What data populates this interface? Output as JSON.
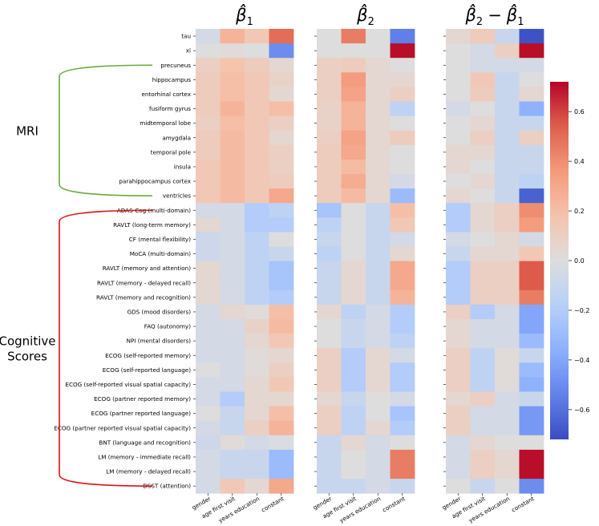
{
  "chart_data": {
    "type": "heatmap",
    "panels": [
      {
        "title_base": "β",
        "title_sub": "1",
        "title_hat": true
      },
      {
        "title_base": "β",
        "title_sub": "2",
        "title_hat": true
      },
      {
        "title_base": "β",
        "title_sub": "2",
        "title_minus": "−",
        "title_base2": "β",
        "title_sub2": "1",
        "title_hat": true
      }
    ],
    "columns": [
      "gender",
      "age first visit",
      "years education",
      "constant"
    ],
    "rows": [
      "tau",
      "xi",
      "precuneus",
      "hippocampus",
      "entorhinal cortex",
      "fusiform gyrus",
      "midtemporal lobe",
      "amygdala",
      "temporal pole",
      "insula",
      "parahippocampus cortex",
      "ventricles",
      "ADAS-Cog (multi-domain)",
      "RAVLT (long-term memory)",
      "CF (mental flexibility)",
      "MoCA (multi-domain)",
      "RAVLT (memory and attention)",
      "RAVLT (memory - delayed recall)",
      "RAVLT (memory and recognition)",
      "GDS (mood disorders)",
      "FAQ (autonomy)",
      "NPI (mental disorders)",
      "ECOG (self-reported memory)",
      "ECOG (self-reported language)",
      "ECOG (self-reported visual spatial capacity)",
      "ECOG (partner reported memory)",
      "ECOG (partner reported language)",
      "ECOG (partner reported visual spatial capacity)",
      "BNT (language and recognition)",
      "LM (memory - immediate recall)",
      "LM (memory - delayed recall)",
      "DSST (attention)"
    ],
    "groups": [
      {
        "label": "MRI",
        "label_lines": [
          "MRI"
        ],
        "color": "#6aaa3a"
      },
      {
        "label": "Cognitive Scores",
        "label_lines": [
          "Cognitive",
          "Scores"
        ],
        "color": "#dd1111"
      }
    ],
    "values": [
      [
        [
          -0.05,
          0.25,
          0.15,
          0.5
        ],
        [
          0.0,
          0.02,
          0.0,
          -0.5
        ],
        [
          0.1,
          0.18,
          0.12,
          0.05
        ],
        [
          0.12,
          0.2,
          0.15,
          0.08
        ],
        [
          0.12,
          0.2,
          0.15,
          0.05
        ],
        [
          0.12,
          0.25,
          0.15,
          0.2
        ],
        [
          0.1,
          0.2,
          0.15,
          0.1
        ],
        [
          0.12,
          0.22,
          0.15,
          0.05
        ],
        [
          0.12,
          0.22,
          0.15,
          0.1
        ],
        [
          0.15,
          0.22,
          0.15,
          0.1
        ],
        [
          0.15,
          0.22,
          0.15,
          0.12
        ],
        [
          0.15,
          0.22,
          0.15,
          0.3
        ],
        [
          -0.05,
          -0.05,
          -0.2,
          -0.15
        ],
        [
          0.05,
          -0.05,
          -0.2,
          -0.2
        ],
        [
          -0.08,
          -0.05,
          -0.15,
          0.0
        ],
        [
          -0.08,
          -0.05,
          -0.15,
          -0.1
        ],
        [
          0.05,
          -0.05,
          -0.15,
          -0.25
        ],
        [
          0.05,
          -0.05,
          -0.15,
          -0.25
        ],
        [
          0.05,
          -0.05,
          -0.15,
          -0.2
        ],
        [
          -0.05,
          0.05,
          0.02,
          0.2
        ],
        [
          -0.05,
          -0.05,
          0.08,
          0.22
        ],
        [
          -0.05,
          -0.05,
          0.05,
          0.15
        ],
        [
          -0.05,
          -0.05,
          0.02,
          0.05
        ],
        [
          0.0,
          -0.05,
          0.02,
          0.1
        ],
        [
          -0.05,
          -0.05,
          0.05,
          0.15
        ],
        [
          -0.05,
          -0.2,
          0.05,
          0.05
        ],
        [
          0.0,
          -0.1,
          0.05,
          0.2
        ],
        [
          -0.05,
          -0.1,
          0.1,
          0.25
        ],
        [
          -0.08,
          0.02,
          -0.05,
          -0.02
        ],
        [
          -0.05,
          -0.1,
          -0.1,
          -0.3
        ],
        [
          -0.05,
          -0.1,
          -0.1,
          -0.3
        ],
        [
          -0.05,
          0.15,
          0.05,
          0.3
        ]
      ],
      [
        [
          0.0,
          0.45,
          0.0,
          -0.55
        ],
        [
          0.0,
          0.0,
          0.0,
          0.7
        ],
        [
          0.1,
          0.12,
          0.05,
          0.0
        ],
        [
          0.1,
          0.35,
          0.05,
          0.05
        ],
        [
          0.1,
          0.32,
          0.05,
          0.1
        ],
        [
          0.08,
          0.25,
          0.05,
          -0.15
        ],
        [
          0.08,
          0.25,
          0.05,
          0.0
        ],
        [
          0.1,
          0.32,
          0.05,
          0.12
        ],
        [
          0.12,
          0.3,
          0.05,
          0.0
        ],
        [
          0.12,
          0.22,
          0.05,
          0.0
        ],
        [
          0.12,
          0.28,
          0.05,
          -0.05
        ],
        [
          0.12,
          0.22,
          0.05,
          -0.3
        ],
        [
          -0.25,
          0.0,
          -0.1,
          0.2
        ],
        [
          -0.15,
          0.0,
          -0.1,
          0.15
        ],
        [
          -0.1,
          0.0,
          -0.1,
          -0.05
        ],
        [
          -0.15,
          0.0,
          -0.1,
          0.05
        ],
        [
          -0.1,
          0.05,
          -0.1,
          0.3
        ],
        [
          -0.1,
          0.05,
          -0.1,
          0.3
        ],
        [
          -0.1,
          0.05,
          -0.1,
          0.25
        ],
        [
          0.05,
          -0.15,
          -0.05,
          -0.2
        ],
        [
          0.0,
          -0.1,
          -0.05,
          -0.2
        ],
        [
          0.0,
          -0.1,
          -0.05,
          -0.15
        ],
        [
          0.1,
          -0.2,
          0.05,
          -0.05
        ],
        [
          0.1,
          -0.2,
          0.05,
          -0.2
        ],
        [
          0.1,
          -0.2,
          0.05,
          -0.2
        ],
        [
          0.05,
          -0.1,
          0.0,
          -0.05
        ],
        [
          0.1,
          -0.15,
          0.0,
          -0.25
        ],
        [
          0.1,
          -0.15,
          0.05,
          -0.2
        ],
        [
          -0.1,
          0.05,
          -0.05,
          0.0
        ],
        [
          -0.1,
          0.0,
          -0.05,
          0.45
        ],
        [
          -0.1,
          0.0,
          -0.05,
          0.45
        ],
        [
          -0.1,
          -0.1,
          -0.05,
          -0.1
        ]
      ],
      [
        [
          0.05,
          0.12,
          -0.1,
          -0.7
        ],
        [
          0.0,
          -0.05,
          0.1,
          0.7
        ],
        [
          0.0,
          -0.05,
          -0.05,
          -0.05
        ],
        [
          0.0,
          0.15,
          -0.1,
          0.0
        ],
        [
          0.0,
          0.12,
          -0.1,
          0.05
        ],
        [
          -0.05,
          0.0,
          -0.1,
          -0.35
        ],
        [
          0.0,
          0.05,
          -0.1,
          -0.1
        ],
        [
          0.0,
          0.1,
          -0.1,
          0.1
        ],
        [
          0.05,
          0.05,
          -0.1,
          -0.1
        ],
        [
          0.05,
          0.0,
          -0.1,
          -0.1
        ],
        [
          0.0,
          0.05,
          -0.1,
          -0.15
        ],
        [
          0.05,
          0.0,
          -0.1,
          -0.65
        ],
        [
          -0.2,
          0.05,
          0.1,
          0.4
        ],
        [
          -0.2,
          0.05,
          0.1,
          0.35
        ],
        [
          -0.05,
          0.0,
          0.05,
          -0.05
        ],
        [
          -0.1,
          0.05,
          0.05,
          0.15
        ],
        [
          -0.2,
          0.1,
          0.1,
          0.55
        ],
        [
          -0.2,
          0.1,
          0.1,
          0.55
        ],
        [
          -0.2,
          0.1,
          0.1,
          0.45
        ],
        [
          0.1,
          -0.2,
          -0.05,
          -0.4
        ],
        [
          0.05,
          -0.05,
          -0.05,
          -0.4
        ],
        [
          0.05,
          -0.05,
          -0.05,
          -0.3
        ],
        [
          0.1,
          -0.15,
          0.02,
          -0.1
        ],
        [
          0.1,
          -0.15,
          0.02,
          -0.3
        ],
        [
          0.1,
          -0.15,
          0.02,
          -0.35
        ],
        [
          0.05,
          0.1,
          -0.05,
          -0.1
        ],
        [
          0.1,
          -0.05,
          -0.05,
          -0.45
        ],
        [
          0.1,
          -0.05,
          -0.05,
          -0.45
        ],
        [
          -0.05,
          0.05,
          0.0,
          0.0
        ],
        [
          -0.05,
          0.1,
          0.05,
          0.7
        ],
        [
          -0.05,
          0.1,
          0.05,
          0.7
        ],
        [
          0.0,
          -0.1,
          0.0,
          -0.5
        ]
      ]
    ],
    "colorbar": {
      "colormap": "coolwarm",
      "vmin": -0.72,
      "vmax": 0.72,
      "ticks": [
        -0.6,
        -0.4,
        -0.2,
        0.0,
        0.2,
        0.4,
        0.6
      ],
      "tick_labels": [
        "−0.6",
        "−0.4",
        "−0.2",
        "0.0",
        "0.2",
        "0.4",
        "0.6"
      ]
    }
  }
}
